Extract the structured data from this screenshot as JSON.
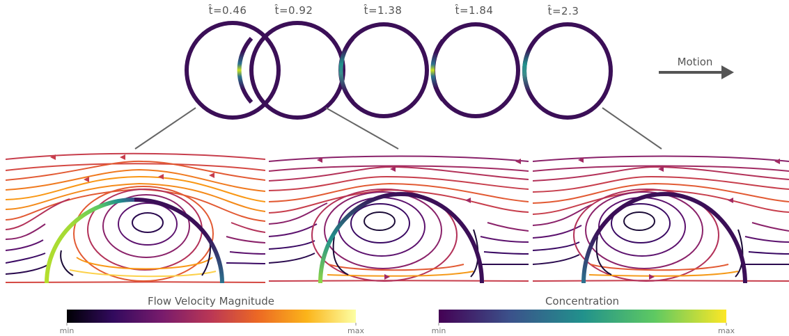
{
  "time_labels": [
    "t̂=0.46",
    "t̂=0.92",
    "t̂=1.38",
    "t̂=1.84",
    "t̂=2.3"
  ],
  "motion_label": "Motion",
  "colorbars": {
    "velocity": {
      "title": "Flow Velocity Magnitude",
      "min_label": "min",
      "max_label": "max",
      "colors": [
        "#000004",
        "#320a5e",
        "#781b6c",
        "#bb3755",
        "#ec6824",
        "#fbb41a",
        "#fcffa4"
      ]
    },
    "concentration": {
      "title": "Concentration",
      "min_label": "min",
      "max_label": "max",
      "colors": [
        "#440154",
        "#3b528b",
        "#21918c",
        "#5ec962",
        "#fde725"
      ]
    }
  },
  "colors": {
    "ring": "#3b0f57",
    "leader": "#666666",
    "arrow": "#555555"
  }
}
